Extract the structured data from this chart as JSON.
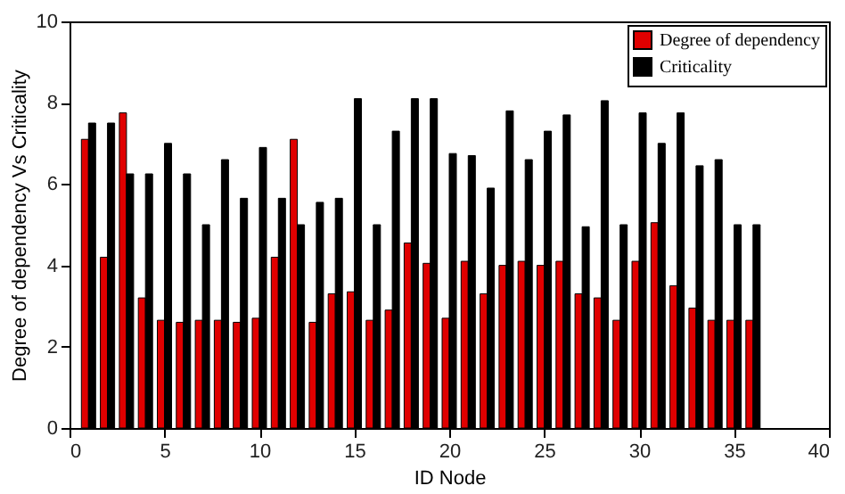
{
  "chart_data": {
    "type": "bar",
    "xlabel": "ID Node",
    "ylabel": "Degree of dependency Vs Criticality",
    "x": [
      1,
      2,
      3,
      4,
      5,
      6,
      7,
      8,
      9,
      10,
      11,
      12,
      13,
      14,
      15,
      16,
      17,
      18,
      19,
      20,
      21,
      22,
      23,
      24,
      25,
      26,
      27,
      28,
      29,
      30,
      31,
      32,
      33,
      34,
      35,
      36
    ],
    "series": [
      {
        "name": "Degree of dependency",
        "color": "#e00000",
        "values": [
          7.1,
          4.2,
          7.75,
          3.2,
          2.65,
          2.6,
          2.65,
          2.65,
          2.6,
          2.7,
          4.2,
          7.1,
          2.6,
          3.3,
          3.35,
          2.65,
          2.9,
          4.55,
          4.05,
          2.7,
          4.1,
          3.3,
          4.0,
          4.1,
          4.0,
          4.1,
          3.3,
          3.2,
          2.65,
          4.1,
          5.05,
          3.5,
          2.95,
          2.65,
          2.65,
          2.65
        ]
      },
      {
        "name": "Criticality",
        "color": "#000000",
        "values": [
          7.5,
          7.5,
          6.25,
          6.25,
          7.0,
          6.25,
          5.0,
          6.6,
          5.65,
          6.9,
          5.65,
          5.0,
          5.55,
          5.65,
          8.1,
          5.0,
          7.3,
          8.1,
          8.1,
          6.75,
          6.7,
          5.9,
          7.8,
          6.6,
          7.3,
          7.7,
          4.95,
          8.05,
          5.0,
          7.75,
          7.0,
          7.75,
          6.45,
          6.6,
          5.0,
          5.0
        ]
      }
    ],
    "xlim": [
      0,
      40
    ],
    "xticks": [
      0,
      5,
      10,
      15,
      20,
      25,
      30,
      35,
      40
    ],
    "ylim": [
      0,
      10
    ],
    "yticks": [
      0,
      2,
      4,
      6,
      8,
      10
    ],
    "grid": false,
    "legend": "top right"
  }
}
